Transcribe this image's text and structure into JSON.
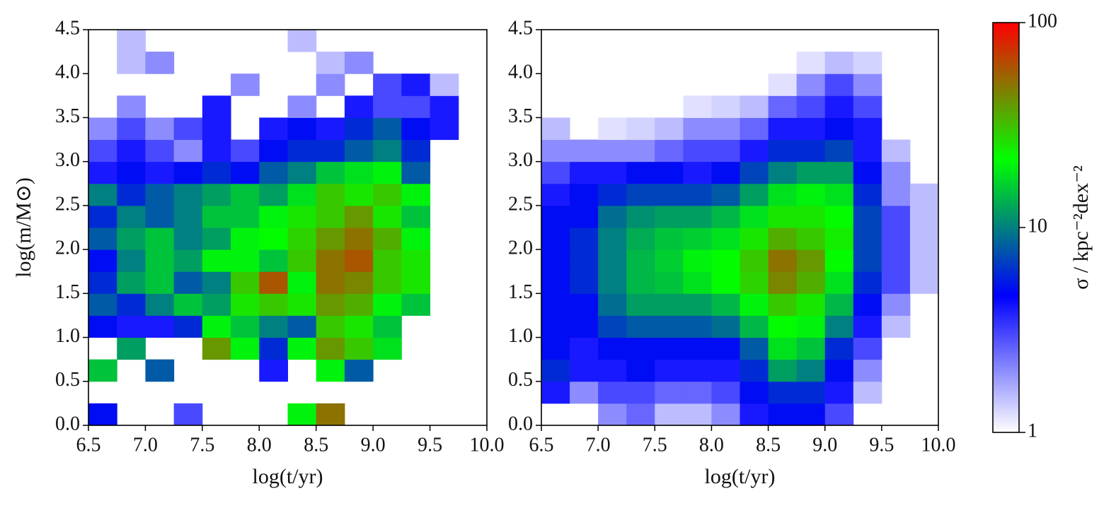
{
  "chart_data": [
    {
      "type": "heatmap",
      "xlabel": "log(t/yr)",
      "ylabel": "log(m/M⊙)",
      "xlim": [
        6.5,
        10.0
      ],
      "ylim": [
        0.0,
        4.5
      ],
      "xticks": [
        6.5,
        {
          "value": 7.0,
          "label": "7.0"
        },
        7.5,
        {
          "value": 8.0,
          "label": "8.0"
        },
        8.5,
        {
          "value": 9.0,
          "label": "9.0"
        },
        9.5,
        {
          "value": 10.0,
          "label": "10.0"
        }
      ],
      "yticks": [
        {
          "value": 0.0,
          "label": "0.0"
        },
        0.5,
        {
          "value": 1.0,
          "label": "1.0"
        },
        1.5,
        {
          "value": 2.0,
          "label": "2.0"
        },
        2.5,
        {
          "value": 3.0,
          "label": "3.0"
        },
        3.5,
        {
          "value": 4.0,
          "label": "4.0"
        },
        4.5
      ],
      "xbins": [
        6.5,
        6.75,
        7.0,
        7.25,
        7.5,
        7.75,
        8.0,
        8.25,
        8.5,
        8.75,
        9.0,
        9.25,
        9.5,
        9.75,
        10.0
      ],
      "ybins": [
        0.0,
        0.25,
        0.5,
        0.75,
        1.0,
        1.25,
        1.5,
        1.75,
        2.0,
        2.25,
        2.5,
        2.75,
        3.0,
        3.25,
        3.5,
        3.75,
        4.0,
        4.25,
        4.5
      ],
      "values": [
        [
          5,
          null,
          null,
          3,
          null,
          null,
          null,
          20,
          50,
          null,
          null,
          null,
          null,
          null
        ],
        [
          null,
          null,
          null,
          null,
          null,
          null,
          null,
          null,
          null,
          null,
          null,
          null,
          null,
          null
        ],
        [
          15,
          null,
          8,
          null,
          null,
          null,
          4,
          null,
          20,
          8,
          null,
          null,
          null,
          null
        ],
        [
          null,
          12,
          null,
          null,
          40,
          20,
          6,
          20,
          40,
          30,
          18,
          null,
          null,
          null
        ],
        [
          5,
          4,
          4,
          6,
          20,
          15,
          10,
          8,
          30,
          25,
          15,
          null,
          null,
          null
        ],
        [
          8,
          6,
          10,
          15,
          12,
          25,
          30,
          25,
          40,
          35,
          20,
          15,
          null,
          null
        ],
        [
          6,
          12,
          15,
          8,
          10,
          30,
          60,
          20,
          50,
          45,
          30,
          25,
          null,
          null
        ],
        [
          5,
          10,
          15,
          12,
          20,
          20,
          15,
          30,
          50,
          60,
          30,
          25,
          null,
          null
        ],
        [
          8,
          12,
          15,
          10,
          12,
          20,
          22,
          28,
          40,
          50,
          35,
          20,
          null,
          null
        ],
        [
          6,
          10,
          8,
          10,
          15,
          15,
          20,
          25,
          30,
          40,
          25,
          15,
          null,
          null
        ],
        [
          10,
          6,
          8,
          10,
          12,
          15,
          12,
          18,
          30,
          25,
          30,
          20,
          null,
          null
        ],
        [
          4,
          5,
          4,
          5,
          6,
          5,
          8,
          10,
          15,
          18,
          20,
          8,
          null,
          null
        ],
        [
          3,
          4,
          3,
          2,
          4,
          3,
          5,
          6,
          6,
          8,
          10,
          6,
          null,
          null
        ],
        [
          2,
          3,
          2,
          3,
          4,
          null,
          4,
          5,
          4,
          6,
          8,
          5,
          4,
          null
        ],
        [
          null,
          2,
          null,
          null,
          4,
          null,
          null,
          2,
          null,
          4,
          3,
          3,
          4,
          null
        ],
        [
          null,
          null,
          null,
          null,
          null,
          2,
          null,
          null,
          2,
          null,
          3,
          4,
          1.5,
          null
        ],
        [
          null,
          1.5,
          2,
          null,
          null,
          null,
          null,
          null,
          1.5,
          2,
          null,
          null,
          null,
          null
        ],
        [
          null,
          1.5,
          null,
          null,
          null,
          null,
          null,
          1.5,
          null,
          null,
          null,
          null,
          null,
          null
        ]
      ]
    },
    {
      "type": "heatmap",
      "xlabel": "log(t/yr)",
      "xlim": [
        6.5,
        10.0
      ],
      "ylim": [
        0.0,
        4.5
      ],
      "xticks": [
        6.5,
        {
          "value": 7.0,
          "label": "7.0"
        },
        7.5,
        {
          "value": 8.0,
          "label": "8.0"
        },
        8.5,
        {
          "value": 9.0,
          "label": "9.0"
        },
        9.5,
        {
          "value": 10.0,
          "label": "10.0"
        }
      ],
      "yticks": [
        {
          "value": 0.0,
          "label": "0.0"
        },
        0.5,
        {
          "value": 1.0,
          "label": "1.0"
        },
        1.5,
        {
          "value": 2.0,
          "label": "2.0"
        },
        2.5,
        {
          "value": 3.0,
          "label": "3.0"
        },
        3.5,
        {
          "value": 4.0,
          "label": "4.0"
        },
        4.5
      ],
      "xbins": [
        6.5,
        6.75,
        7.0,
        7.25,
        7.5,
        7.75,
        8.0,
        8.25,
        8.5,
        8.75,
        9.0,
        9.25,
        9.5,
        9.75,
        10.0
      ],
      "ybins": [
        0.0,
        0.25,
        0.5,
        0.75,
        1.0,
        1.25,
        1.5,
        1.75,
        2.0,
        2.25,
        2.5,
        2.75,
        3.0,
        3.25,
        3.5,
        3.75,
        4.0,
        4.25,
        4.5
      ],
      "values": [
        [
          null,
          null,
          2,
          2.5,
          1.5,
          1.5,
          2,
          4,
          5,
          5,
          3,
          null,
          null,
          null
        ],
        [
          4,
          2,
          3,
          3,
          2.5,
          2.5,
          3,
          5,
          6,
          6,
          4,
          1.5,
          null,
          null
        ],
        [
          6,
          4,
          4,
          5,
          4,
          4,
          4,
          6,
          12,
          10,
          5,
          2,
          null,
          null
        ],
        [
          5,
          4,
          5,
          5,
          5,
          5,
          5,
          8,
          18,
          15,
          6,
          3,
          null,
          null
        ],
        [
          5,
          5,
          7,
          8,
          8,
          8,
          9,
          14,
          22,
          20,
          10,
          4,
          1.5,
          null
        ],
        [
          5,
          5,
          9,
          12,
          12,
          12,
          14,
          20,
          30,
          25,
          14,
          5,
          2,
          null
        ],
        [
          5,
          6,
          10,
          14,
          15,
          18,
          22,
          28,
          45,
          35,
          18,
          6,
          3,
          1.5
        ],
        [
          5,
          6,
          10,
          14,
          16,
          20,
          22,
          30,
          50,
          40,
          22,
          7,
          3,
          1.5
        ],
        [
          5,
          6,
          10,
          13,
          15,
          16,
          18,
          25,
          35,
          30,
          24,
          7,
          3,
          1.5
        ],
        [
          5,
          5,
          9,
          11,
          12,
          12,
          14,
          18,
          25,
          25,
          22,
          7,
          3,
          1.5
        ],
        [
          4,
          5,
          6,
          7,
          7,
          7,
          8,
          12,
          18,
          20,
          18,
          6,
          2,
          1.5
        ],
        [
          3,
          4,
          4,
          5,
          5,
          4,
          5,
          7,
          10,
          12,
          12,
          5,
          2,
          null
        ],
        [
          2,
          2,
          2,
          2,
          2.5,
          3,
          3,
          4,
          6,
          6,
          7,
          4,
          1.5,
          null
        ],
        [
          1.5,
          null,
          1.2,
          1.3,
          1.5,
          2,
          2,
          2.5,
          4,
          4,
          5,
          4,
          null,
          null
        ],
        [
          null,
          null,
          null,
          null,
          null,
          1.2,
          1.3,
          1.5,
          2.5,
          3,
          4,
          3,
          null,
          null
        ],
        [
          null,
          null,
          null,
          null,
          null,
          null,
          null,
          null,
          1.2,
          2,
          3,
          2,
          null,
          null
        ],
        [
          null,
          null,
          null,
          null,
          null,
          null,
          null,
          null,
          null,
          1.2,
          1.5,
          1.3,
          null,
          null
        ],
        [
          null,
          null,
          null,
          null,
          null,
          null,
          null,
          null,
          null,
          null,
          null,
          null,
          null,
          null
        ]
      ]
    }
  ],
  "colorbar": {
    "label": "σ / kpc⁻²dex⁻²",
    "lim": [
      1,
      100
    ],
    "log": true,
    "ticks": [
      1,
      10,
      100
    ],
    "colors": [
      "#ffffff",
      "#0000ff",
      "#00ff00",
      "#ff0000"
    ]
  }
}
